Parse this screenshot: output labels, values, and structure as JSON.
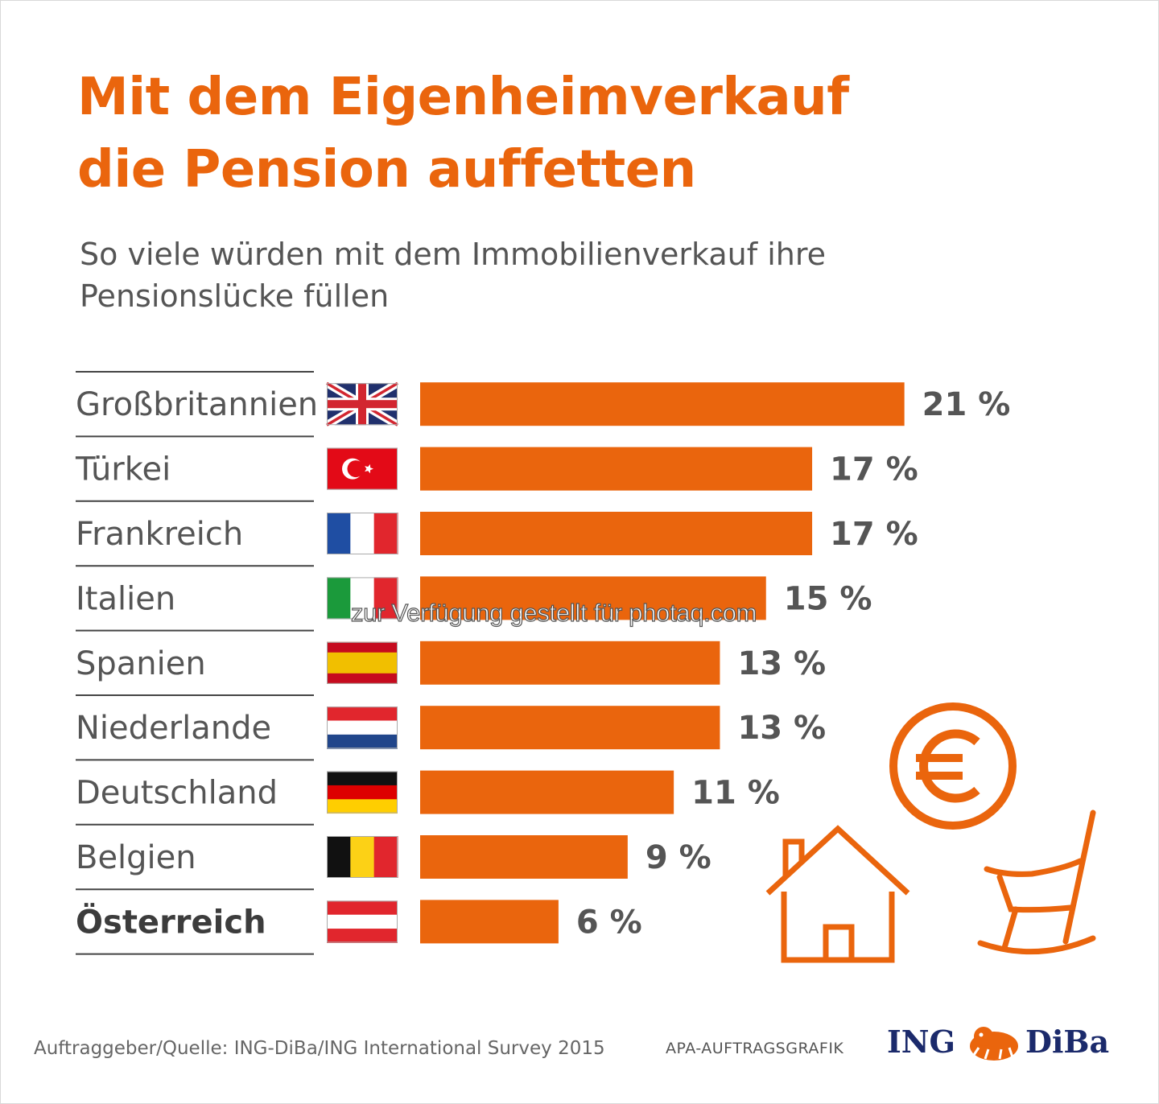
{
  "title": {
    "line1": "Mit dem Eigenheimverkauf",
    "line2": "die Pension auffetten"
  },
  "subtitle": {
    "line1": "So viele würden mit dem Immobilienverkauf ihre",
    "line2": "Pensionslücke füllen"
  },
  "colors": {
    "accent": "#ea650d",
    "label": "#555555",
    "rule": "#444444"
  },
  "chart_data": {
    "type": "bar",
    "orientation": "horizontal",
    "categories": [
      "Großbritannien",
      "Türkei",
      "Frankreich",
      "Italien",
      "Spanien",
      "Niederlande",
      "Deutschland",
      "Belgien",
      "Österreich"
    ],
    "values": [
      21,
      17,
      17,
      15,
      13,
      13,
      11,
      9,
      6
    ],
    "value_labels": [
      "21 %",
      "17 %",
      "17 %",
      "15 %",
      "13 %",
      "13 %",
      "11 %",
      "9 %",
      "6 %"
    ],
    "flags": [
      "uk-flag-icon",
      "turkey-flag-icon",
      "france-flag-icon",
      "italy-flag-icon",
      "spain-flag-icon",
      "netherlands-flag-icon",
      "germany-flag-icon",
      "belgium-flag-icon",
      "austria-flag-icon"
    ],
    "highlight": "Österreich",
    "unit": "%",
    "grid": false
  },
  "decorations": [
    "euro-coin-icon",
    "house-icon",
    "rocking-chair-icon"
  ],
  "footer": {
    "source": "Auftraggeber/Quelle: ING-DiBa/ING International Survey 2015",
    "apa": "APA-AUFTRAGSGRAFIK"
  },
  "logo": {
    "part1": "ING",
    "part2": "DiBa",
    "icon": "lion-icon"
  },
  "watermark": "zur Verfügung gestellt für photaq.com"
}
